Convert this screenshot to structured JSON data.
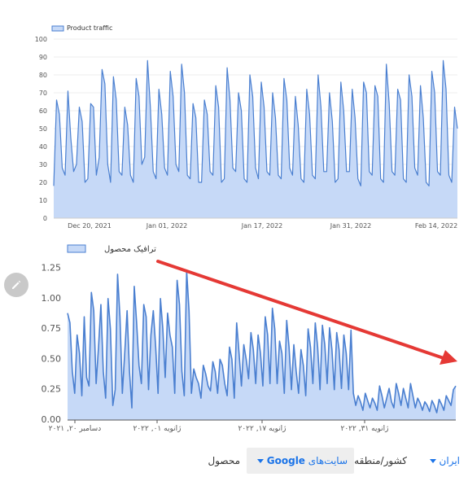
{
  "chart_data": [
    {
      "type": "area",
      "series": [
        {
          "name": "Product traffic",
          "values": [
            18,
            66,
            58,
            28,
            24,
            71,
            45,
            26,
            30,
            62,
            54,
            20,
            22,
            64,
            62,
            24,
            34,
            83,
            75,
            30,
            20,
            79,
            66,
            26,
            24,
            62,
            52,
            24,
            20,
            78,
            68,
            30,
            34,
            88,
            62,
            26,
            22,
            72,
            58,
            28,
            24,
            82,
            68,
            30,
            26,
            86,
            70,
            24,
            22,
            64,
            56,
            20,
            20,
            66,
            58,
            26,
            24,
            74,
            62,
            20,
            22,
            84,
            66,
            28,
            26,
            70,
            60,
            22,
            20,
            80,
            68,
            28,
            22,
            76,
            62,
            26,
            24,
            70,
            56,
            24,
            22,
            78,
            66,
            28,
            24,
            68,
            52,
            22,
            20,
            72,
            58,
            24,
            22,
            80,
            62,
            26,
            26,
            70,
            54,
            20,
            22,
            76,
            60,
            26,
            26,
            72,
            56,
            22,
            18,
            76,
            70,
            26,
            24,
            74,
            68,
            22,
            20,
            86,
            64,
            26,
            24,
            72,
            66,
            22,
            20,
            80,
            68,
            28,
            24,
            74,
            56,
            20,
            18,
            82,
            70,
            26,
            24,
            88,
            72,
            24,
            20,
            62,
            50
          ]
        }
      ],
      "x_ticks": [
        "Dec 20, 2021",
        "Jan 01, 2022",
        "Jan 17, 2022",
        "Jan 31, 2022",
        "Feb 14, 2022"
      ],
      "y_ticks": [
        "100",
        "90",
        "80",
        "70",
        "60",
        "50",
        "40",
        "30",
        "20",
        "10",
        "0"
      ],
      "ylim": [
        0,
        100
      ],
      "legend": "top-left",
      "line_color": "#4a7fd0",
      "fill_color": "#c6d9f7"
    },
    {
      "type": "area",
      "series": [
        {
          "name": "ترافیک محصول",
          "values": [
            0.88,
            0.8,
            0.4,
            0.22,
            0.7,
            0.55,
            0.2,
            0.85,
            0.35,
            0.28,
            1.05,
            0.9,
            0.3,
            0.6,
            0.95,
            0.4,
            0.18,
            1.0,
            0.75,
            0.12,
            0.25,
            1.2,
            0.85,
            0.22,
            0.55,
            0.9,
            0.4,
            0.1,
            1.1,
            0.8,
            0.45,
            0.3,
            0.95,
            0.85,
            0.25,
            0.7,
            0.9,
            0.6,
            0.22,
            1.0,
            0.75,
            0.35,
            0.88,
            0.7,
            0.6,
            0.22,
            1.15,
            0.95,
            0.4,
            0.2,
            1.23,
            0.9,
            0.22,
            0.42,
            0.35,
            0.3,
            0.18,
            0.45,
            0.38,
            0.28,
            0.24,
            0.48,
            0.4,
            0.22,
            0.5,
            0.45,
            0.3,
            0.2,
            0.6,
            0.5,
            0.18,
            0.8,
            0.55,
            0.28,
            0.62,
            0.5,
            0.34,
            0.72,
            0.58,
            0.3,
            0.7,
            0.55,
            0.28,
            0.85,
            0.7,
            0.3,
            0.92,
            0.75,
            0.3,
            0.65,
            0.55,
            0.22,
            0.82,
            0.6,
            0.25,
            0.62,
            0.4,
            0.22,
            0.58,
            0.45,
            0.2,
            0.75,
            0.6,
            0.3,
            0.8,
            0.6,
            0.25,
            0.78,
            0.62,
            0.3,
            0.76,
            0.58,
            0.25,
            0.72,
            0.58,
            0.26,
            0.7,
            0.55,
            0.25,
            0.74,
            0.22,
            0.12,
            0.2,
            0.15,
            0.08,
            0.22,
            0.16,
            0.1,
            0.18,
            0.14,
            0.08,
            0.28,
            0.2,
            0.1,
            0.18,
            0.26,
            0.15,
            0.1,
            0.3,
            0.22,
            0.12,
            0.26,
            0.18,
            0.1,
            0.3,
            0.2,
            0.1,
            0.18,
            0.14,
            0.08,
            0.15,
            0.12,
            0.07,
            0.16,
            0.12,
            0.06,
            0.17,
            0.13,
            0.08,
            0.2,
            0.16,
            0.12,
            0.25,
            0.28
          ]
        }
      ],
      "x_ticks": [
        "دسامبر ۲۰, ۲۰۲۱",
        "ژانویه ۰۱, ۲۰۲۲",
        "ژانویه ۱۷, ۲۰۲۲",
        "ژانویه ۳۱, ۲۰۲۲"
      ],
      "y_ticks": [
        "1.25",
        "1.00",
        "0.75",
        "0.50",
        "0.25",
        "0.00"
      ],
      "ylim": [
        0,
        1.3
      ],
      "legend": "top-left",
      "line_color": "#4a7fd0",
      "fill_color": "#c6d9f7",
      "annotation_arrow_color": "#e53935"
    }
  ],
  "filters": {
    "product_label": "محصول",
    "sites_value": "سایت‌های",
    "sites_brand": "Google",
    "country_label": "کشور/منطقه",
    "country_value": "ایران"
  }
}
